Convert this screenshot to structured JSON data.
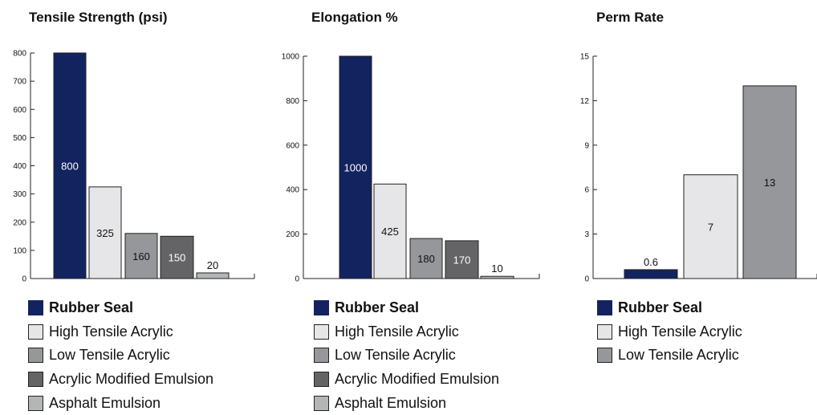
{
  "colors": {
    "rubber_seal": "#132360",
    "high_tensile_acrylic": "#e6e6e8",
    "low_tensile_acrylic": "#96979a",
    "acrylic_modified_emulsion": "#646467",
    "asphalt_emulsion": "#b4b5b7"
  },
  "chart_data": [
    {
      "type": "bar",
      "title": "Tensile Strength (psi)",
      "xlabel": "",
      "ylabel": "",
      "ylim": [
        0,
        800
      ],
      "yticks": [
        "0",
        "100",
        "200",
        "300",
        "400",
        "500",
        "600",
        "700",
        "800"
      ],
      "grid": false,
      "legend_position": "bottom",
      "bars": [
        {
          "label": "Rubber Seal",
          "value": 800,
          "data_label": "800",
          "color": "#132360"
        },
        {
          "label": "High Tensile Acrylic",
          "value": 325,
          "data_label": "325",
          "color": "#e6e6e8"
        },
        {
          "label": "Low Tensile Acrylic",
          "value": 160,
          "data_label": "160",
          "color": "#96979a"
        },
        {
          "label": "Acrylic Modified Emulsion",
          "value": 150,
          "data_label": "150",
          "color": "#646467"
        },
        {
          "label": "Asphalt Emulsion",
          "value": 20,
          "data_label": "20",
          "color": "#b4b5b7"
        }
      ]
    },
    {
      "type": "bar",
      "title": "Elongation %",
      "xlabel": "",
      "ylabel": "",
      "ylim": [
        0,
        1000
      ],
      "yticks": [
        "0",
        "200",
        "400",
        "600",
        "800",
        "1000"
      ],
      "grid": false,
      "legend_position": "bottom",
      "bars": [
        {
          "label": "Rubber Seal",
          "value": 1000,
          "data_label": "1000",
          "color": "#132360"
        },
        {
          "label": "High Tensile Acrylic",
          "value": 425,
          "data_label": "425",
          "color": "#e6e6e8"
        },
        {
          "label": "Low Tensile Acrylic",
          "value": 180,
          "data_label": "180",
          "color": "#96979a"
        },
        {
          "label": "Acrylic Modified Emulsion",
          "value": 170,
          "data_label": "170",
          "color": "#646467"
        },
        {
          "label": "Asphalt Emulsion",
          "value": 10,
          "data_label": "10",
          "color": "#b4b5b7"
        }
      ]
    },
    {
      "type": "bar",
      "title": "Perm Rate",
      "xlabel": "",
      "ylabel": "",
      "ylim": [
        0,
        15
      ],
      "yticks": [
        "0",
        "3",
        "6",
        "9",
        "12",
        "15"
      ],
      "grid": false,
      "legend_position": "bottom",
      "bars": [
        {
          "label": "Rubber Seal",
          "value": 0.6,
          "data_label": "0.6",
          "color": "#132360"
        },
        {
          "label": "High Tensile Acrylic",
          "value": 7,
          "data_label": "7",
          "color": "#e6e6e8"
        },
        {
          "label": "Low Tensile Acrylic",
          "value": 13,
          "data_label": "13",
          "color": "#96979a"
        }
      ]
    }
  ]
}
